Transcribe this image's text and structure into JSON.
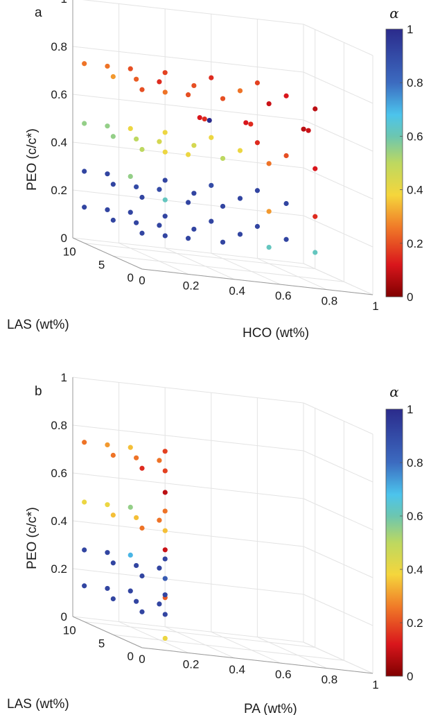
{
  "chart_data": [
    {
      "panel_label": "a",
      "type": "scatter3d",
      "xlabel": "HCO (wt%)",
      "ylabel": "LAS (wt%)",
      "zlabel": "PEO (c/c*)",
      "x_ticks": [
        "0",
        "0.2",
        "0.4",
        "0.6",
        "0.8",
        "1"
      ],
      "y_ticks": [
        "0",
        "5",
        "10"
      ],
      "z_ticks": [
        "0",
        "0.2",
        "0.4",
        "0.6",
        "0.8",
        "1"
      ],
      "xlim": [
        0,
        1
      ],
      "ylim": [
        0,
        12
      ],
      "zlim": [
        0,
        1
      ],
      "colorbar": {
        "title": "α",
        "ticks": [
          "0",
          "0.2",
          "0.4",
          "0.6",
          "0.8",
          "1"
        ],
        "range": [
          0,
          1
        ]
      },
      "points": [
        {
          "x": 0.0,
          "y": 10,
          "z": 0.75,
          "alpha": 0.25
        },
        {
          "x": 0.0,
          "y": 5,
          "z": 0.75,
          "alpha": 0.3
        },
        {
          "x": 0.0,
          "y": 0,
          "z": 0.75,
          "alpha": 0.2
        },
        {
          "x": 0.1,
          "y": 10,
          "z": 0.75,
          "alpha": 0.25
        },
        {
          "x": 0.1,
          "y": 5,
          "z": 0.75,
          "alpha": 0.22
        },
        {
          "x": 0.1,
          "y": 0,
          "z": 0.75,
          "alpha": 0.25
        },
        {
          "x": 0.2,
          "y": 10,
          "z": 0.75,
          "alpha": 0.2
        },
        {
          "x": 0.2,
          "y": 5,
          "z": 0.75,
          "alpha": 0.15
        },
        {
          "x": 0.2,
          "y": 0,
          "z": 0.75,
          "alpha": 0.2
        },
        {
          "x": 0.35,
          "y": 10,
          "z": 0.75,
          "alpha": 0.18
        },
        {
          "x": 0.35,
          "y": 5,
          "z": 0.75,
          "alpha": 0.2
        },
        {
          "x": 0.35,
          "y": 0,
          "z": 0.75,
          "alpha": 0.2
        },
        {
          "x": 0.55,
          "y": 10,
          "z": 0.75,
          "alpha": 0.15
        },
        {
          "x": 0.55,
          "y": 5,
          "z": 0.75,
          "alpha": 0.25
        },
        {
          "x": 0.55,
          "y": 0,
          "z": 0.75,
          "alpha": 0.1
        },
        {
          "x": 0.75,
          "y": 10,
          "z": 0.75,
          "alpha": 0.18
        },
        {
          "x": 0.75,
          "y": 5,
          "z": 0.75,
          "alpha": 0.12
        },
        {
          "x": 0.75,
          "y": 0,
          "z": 0.75,
          "alpha": 0.08
        },
        {
          "x": 0.25,
          "y": 0,
          "z": 0.66,
          "alpha": 0.12
        },
        {
          "x": 0.25,
          "y": 0,
          "z": 0.66,
          "alpha": 0.15
        },
        {
          "x": 0.25,
          "y": 0,
          "z": 0.66,
          "alpha": 1.0
        },
        {
          "x": 0.45,
          "y": 0,
          "z": 0.66,
          "alpha": 0.12
        },
        {
          "x": 0.45,
          "y": 0,
          "z": 0.66,
          "alpha": 0.15
        },
        {
          "x": 0.7,
          "y": 0,
          "z": 0.66,
          "alpha": 0.08
        },
        {
          "x": 0.7,
          "y": 0,
          "z": 0.66,
          "alpha": 0.1
        },
        {
          "x": 0.0,
          "y": 10,
          "z": 0.5,
          "alpha": 0.55
        },
        {
          "x": 0.0,
          "y": 5,
          "z": 0.5,
          "alpha": 0.55
        },
        {
          "x": 0.0,
          "y": 0,
          "z": 0.5,
          "alpha": 0.5
        },
        {
          "x": 0.1,
          "y": 10,
          "z": 0.5,
          "alpha": 0.55
        },
        {
          "x": 0.1,
          "y": 5,
          "z": 0.5,
          "alpha": 0.5
        },
        {
          "x": 0.1,
          "y": 0,
          "z": 0.5,
          "alpha": 0.4
        },
        {
          "x": 0.2,
          "y": 10,
          "z": 0.5,
          "alpha": 0.4
        },
        {
          "x": 0.2,
          "y": 5,
          "z": 0.5,
          "alpha": 0.45
        },
        {
          "x": 0.2,
          "y": 0,
          "z": 0.5,
          "alpha": 0.4
        },
        {
          "x": 0.35,
          "y": 10,
          "z": 0.5,
          "alpha": 0.4
        },
        {
          "x": 0.35,
          "y": 5,
          "z": 0.5,
          "alpha": 0.45
        },
        {
          "x": 0.35,
          "y": 0,
          "z": 0.5,
          "alpha": 0.5
        },
        {
          "x": 0.55,
          "y": 10,
          "z": 0.5,
          "alpha": 0.4
        },
        {
          "x": 0.55,
          "y": 5,
          "z": 0.5,
          "alpha": 0.4
        },
        {
          "x": 0.55,
          "y": 0,
          "z": 0.5,
          "alpha": 0.25
        },
        {
          "x": 0.75,
          "y": 10,
          "z": 0.5,
          "alpha": 0.15
        },
        {
          "x": 0.75,
          "y": 5,
          "z": 0.5,
          "alpha": 0.2
        },
        {
          "x": 0.75,
          "y": 0,
          "z": 0.5,
          "alpha": 0.12
        },
        {
          "x": 0.0,
          "y": 10,
          "z": 0.3,
          "alpha": 0.92
        },
        {
          "x": 0.0,
          "y": 5,
          "z": 0.3,
          "alpha": 0.92
        },
        {
          "x": 0.0,
          "y": 0,
          "z": 0.3,
          "alpha": 0.92
        },
        {
          "x": 0.1,
          "y": 10,
          "z": 0.3,
          "alpha": 0.92
        },
        {
          "x": 0.1,
          "y": 5,
          "z": 0.3,
          "alpha": 0.9
        },
        {
          "x": 0.1,
          "y": 0,
          "z": 0.3,
          "alpha": 0.62
        },
        {
          "x": 0.2,
          "y": 10,
          "z": 0.3,
          "alpha": 0.55
        },
        {
          "x": 0.2,
          "y": 5,
          "z": 0.3,
          "alpha": 0.9
        },
        {
          "x": 0.2,
          "y": 0,
          "z": 0.3,
          "alpha": 0.92
        },
        {
          "x": 0.35,
          "y": 10,
          "z": 0.3,
          "alpha": 0.92
        },
        {
          "x": 0.35,
          "y": 5,
          "z": 0.3,
          "alpha": 0.92
        },
        {
          "x": 0.35,
          "y": 0,
          "z": 0.3,
          "alpha": 0.92
        },
        {
          "x": 0.55,
          "y": 10,
          "z": 0.3,
          "alpha": 0.9
        },
        {
          "x": 0.55,
          "y": 5,
          "z": 0.3,
          "alpha": 0.92
        },
        {
          "x": 0.55,
          "y": 0,
          "z": 0.3,
          "alpha": 0.3
        },
        {
          "x": 0.75,
          "y": 10,
          "z": 0.3,
          "alpha": 0.92
        },
        {
          "x": 0.75,
          "y": 5,
          "z": 0.3,
          "alpha": 0.92
        },
        {
          "x": 0.75,
          "y": 0,
          "z": 0.3,
          "alpha": 0.15
        },
        {
          "x": 0.0,
          "y": 10,
          "z": 0.15,
          "alpha": 0.92
        },
        {
          "x": 0.0,
          "y": 5,
          "z": 0.15,
          "alpha": 0.92
        },
        {
          "x": 0.0,
          "y": 0,
          "z": 0.15,
          "alpha": 0.92
        },
        {
          "x": 0.1,
          "y": 10,
          "z": 0.15,
          "alpha": 0.92
        },
        {
          "x": 0.1,
          "y": 5,
          "z": 0.15,
          "alpha": 0.92
        },
        {
          "x": 0.1,
          "y": 0,
          "z": 0.15,
          "alpha": 0.92
        },
        {
          "x": 0.2,
          "y": 10,
          "z": 0.15,
          "alpha": 0.92
        },
        {
          "x": 0.2,
          "y": 5,
          "z": 0.15,
          "alpha": 0.92
        },
        {
          "x": 0.2,
          "y": 0,
          "z": 0.15,
          "alpha": 0.92
        },
        {
          "x": 0.35,
          "y": 10,
          "z": 0.15,
          "alpha": 0.92
        },
        {
          "x": 0.35,
          "y": 5,
          "z": 0.15,
          "alpha": 0.92
        },
        {
          "x": 0.35,
          "y": 0,
          "z": 0.15,
          "alpha": 0.92
        },
        {
          "x": 0.55,
          "y": 10,
          "z": 0.15,
          "alpha": 0.92
        },
        {
          "x": 0.55,
          "y": 5,
          "z": 0.15,
          "alpha": 0.92
        },
        {
          "x": 0.55,
          "y": 0,
          "z": 0.15,
          "alpha": 0.62
        },
        {
          "x": 0.75,
          "y": 10,
          "z": 0.15,
          "alpha": 0.92
        },
        {
          "x": 0.75,
          "y": 5,
          "z": 0.15,
          "alpha": 0.92
        },
        {
          "x": 0.75,
          "y": 0,
          "z": 0.15,
          "alpha": 0.62
        }
      ]
    },
    {
      "panel_label": "b",
      "type": "scatter3d",
      "xlabel": "PA (wt%)",
      "ylabel": "LAS (wt%)",
      "zlabel": "PEO (c/c*)",
      "x_ticks": [
        "0",
        "0.2",
        "0.4",
        "0.6",
        "0.8",
        "1"
      ],
      "y_ticks": [
        "0",
        "5",
        "10"
      ],
      "z_ticks": [
        "0",
        "0.2",
        "0.4",
        "0.6",
        "0.8",
        "1"
      ],
      "xlim": [
        0,
        1
      ],
      "ylim": [
        0,
        12
      ],
      "zlim": [
        0,
        1
      ],
      "colorbar": {
        "title": "α",
        "ticks": [
          "0",
          "0.2",
          "0.4",
          "0.6",
          "0.8",
          "1"
        ],
        "range": [
          0,
          1
        ]
      },
      "points": [
        {
          "x": 0.0,
          "y": 10,
          "z": 0.75,
          "alpha": 0.25
        },
        {
          "x": 0.0,
          "y": 5,
          "z": 0.75,
          "alpha": 0.25
        },
        {
          "x": 0.0,
          "y": 0,
          "z": 0.75,
          "alpha": 0.15
        },
        {
          "x": 0.1,
          "y": 10,
          "z": 0.75,
          "alpha": 0.3
        },
        {
          "x": 0.1,
          "y": 5,
          "z": 0.75,
          "alpha": 0.25
        },
        {
          "x": 0.1,
          "y": 0,
          "z": 0.75,
          "alpha": 0.18
        },
        {
          "x": 0.2,
          "y": 10,
          "z": 0.75,
          "alpha": 0.35
        },
        {
          "x": 0.2,
          "y": 5,
          "z": 0.75,
          "alpha": 0.25
        },
        {
          "x": 0.35,
          "y": 10,
          "z": 0.75,
          "alpha": 0.18
        },
        {
          "x": 0.1,
          "y": 0,
          "z": 0.66,
          "alpha": 0.08
        },
        {
          "x": 0.0,
          "y": 10,
          "z": 0.5,
          "alpha": 0.4
        },
        {
          "x": 0.0,
          "y": 5,
          "z": 0.5,
          "alpha": 0.35
        },
        {
          "x": 0.0,
          "y": 0,
          "z": 0.5,
          "alpha": 0.25
        },
        {
          "x": 0.1,
          "y": 10,
          "z": 0.5,
          "alpha": 0.4
        },
        {
          "x": 0.1,
          "y": 5,
          "z": 0.5,
          "alpha": 0.35
        },
        {
          "x": 0.1,
          "y": 0,
          "z": 0.5,
          "alpha": 0.35
        },
        {
          "x": 0.2,
          "y": 10,
          "z": 0.5,
          "alpha": 0.55
        },
        {
          "x": 0.2,
          "y": 5,
          "z": 0.5,
          "alpha": 0.25
        },
        {
          "x": 0.35,
          "y": 10,
          "z": 0.5,
          "alpha": 0.25
        },
        {
          "x": 0.1,
          "y": 0,
          "z": 0.42,
          "alpha": 0.1
        },
        {
          "x": 0.0,
          "y": 10,
          "z": 0.3,
          "alpha": 0.92
        },
        {
          "x": 0.0,
          "y": 5,
          "z": 0.3,
          "alpha": 0.92
        },
        {
          "x": 0.0,
          "y": 0,
          "z": 0.3,
          "alpha": 0.92
        },
        {
          "x": 0.1,
          "y": 10,
          "z": 0.3,
          "alpha": 0.92
        },
        {
          "x": 0.1,
          "y": 5,
          "z": 0.3,
          "alpha": 0.92
        },
        {
          "x": 0.1,
          "y": 0,
          "z": 0.3,
          "alpha": 0.85
        },
        {
          "x": 0.2,
          "y": 10,
          "z": 0.3,
          "alpha": 0.7
        },
        {
          "x": 0.2,
          "y": 5,
          "z": 0.3,
          "alpha": 0.92
        },
        {
          "x": 0.35,
          "y": 10,
          "z": 0.3,
          "alpha": 0.92
        },
        {
          "x": 0.1,
          "y": 0,
          "z": 0.22,
          "alpha": 0.22
        },
        {
          "x": 0.0,
          "y": 10,
          "z": 0.15,
          "alpha": 0.92
        },
        {
          "x": 0.0,
          "y": 5,
          "z": 0.15,
          "alpha": 0.92
        },
        {
          "x": 0.0,
          "y": 0,
          "z": 0.15,
          "alpha": 0.92
        },
        {
          "x": 0.1,
          "y": 10,
          "z": 0.15,
          "alpha": 0.92
        },
        {
          "x": 0.1,
          "y": 5,
          "z": 0.15,
          "alpha": 0.92
        },
        {
          "x": 0.1,
          "y": 0,
          "z": 0.15,
          "alpha": 0.92
        },
        {
          "x": 0.2,
          "y": 10,
          "z": 0.15,
          "alpha": 0.92
        },
        {
          "x": 0.2,
          "y": 5,
          "z": 0.15,
          "alpha": 0.92
        },
        {
          "x": 0.35,
          "y": 10,
          "z": 0.15,
          "alpha": 0.92
        },
        {
          "x": 0.1,
          "y": 0,
          "z": 0.05,
          "alpha": 0.4
        }
      ]
    }
  ]
}
